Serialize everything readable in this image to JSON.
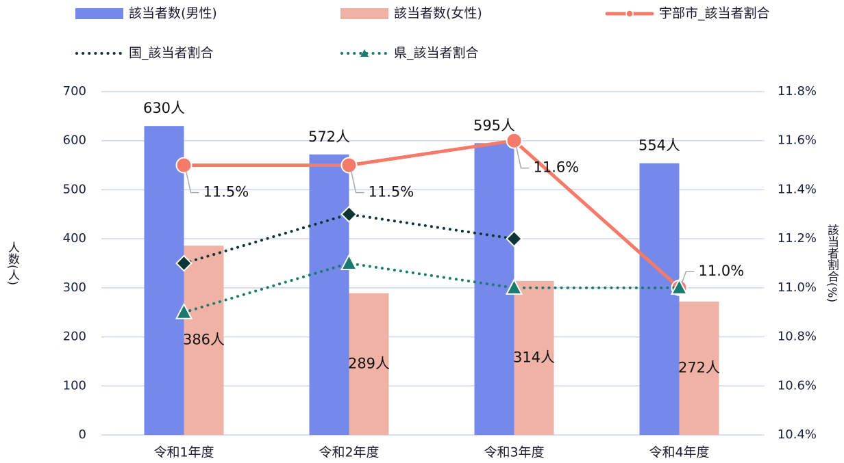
{
  "chart_data": {
    "type": "bar",
    "categories": [
      "令和1年度",
      "令和2年度",
      "令和3年度",
      "令和4年度"
    ],
    "y_label": "人数(人)",
    "y2_label": "該当者割合(%)",
    "ylim": [
      0,
      700
    ],
    "yticks": [
      0,
      100,
      200,
      300,
      400,
      500,
      600,
      700
    ],
    "y2lim": [
      10.4,
      11.8
    ],
    "y2ticks": [
      {
        "value": 10.4,
        "label": "10.4%"
      },
      {
        "value": 10.6,
        "label": "10.6%"
      },
      {
        "value": 10.8,
        "label": "10.8%"
      },
      {
        "value": 11.0,
        "label": "11.0%"
      },
      {
        "value": 11.2,
        "label": "11.2%"
      },
      {
        "value": 11.4,
        "label": "11.4%"
      },
      {
        "value": 11.6,
        "label": "11.6%"
      },
      {
        "value": 11.8,
        "label": "11.8%"
      }
    ],
    "grid": true,
    "series": [
      {
        "name": "該当者数(男性)",
        "type": "bar",
        "color": "#7489ea",
        "values": [
          630,
          572,
          595,
          554
        ],
        "value_labels": [
          "630人",
          "572人",
          "595人",
          "554人"
        ]
      },
      {
        "name": "該当者数(女性)",
        "type": "bar",
        "color": "#f1b2a6",
        "values": [
          386,
          289,
          314,
          272
        ],
        "value_labels": [
          "386人",
          "289人",
          "314人",
          "272人"
        ]
      },
      {
        "name": "宇部市_該当者割合",
        "type": "line",
        "axis": "y2",
        "color": "#f47a6a",
        "marker": "circle",
        "values": [
          11.5,
          11.5,
          11.6,
          11.0
        ],
        "value_labels": [
          "11.5%",
          "11.5%",
          "11.6%",
          "11.0%"
        ]
      },
      {
        "name": "国_該当者割合",
        "type": "line",
        "axis": "y2",
        "color": "#0d3535",
        "marker": "diamond",
        "dotted": true,
        "values": [
          11.1,
          11.3,
          11.2,
          null
        ]
      },
      {
        "name": "県_該当者割合",
        "type": "line",
        "axis": "y2",
        "color": "#1a7a6e",
        "marker": "triangle",
        "dotted": true,
        "values": [
          10.9,
          11.1,
          11.0,
          11.0
        ]
      }
    ]
  }
}
